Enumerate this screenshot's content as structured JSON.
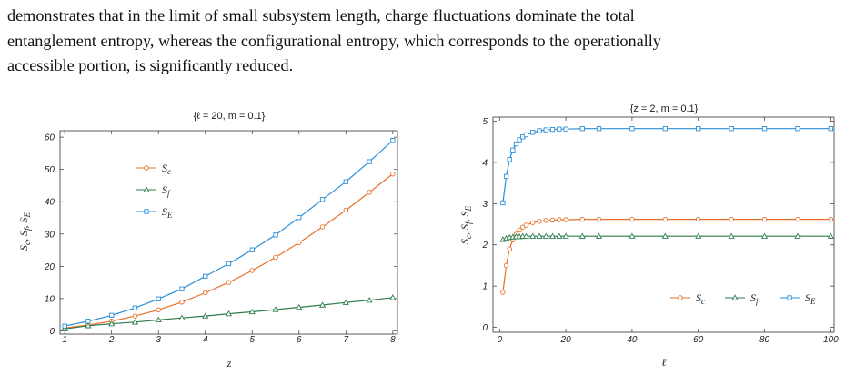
{
  "paragraph": {
    "lines": [
      "demonstrates that in the limit of small subsystem length, charge fluctuations dominate the total",
      "entanglement entropy, whereas the configurational entropy, which corresponds to the operationally",
      "accessible portion, is significantly reduced."
    ]
  },
  "chart_data": [
    {
      "type": "line",
      "title": "{ℓ = 20,  m = 0.1}",
      "xlabel": "z",
      "ylabel": "Sc, Sf, SE",
      "xlim": [
        0.9,
        8.1
      ],
      "ylim": [
        -1,
        62
      ],
      "xticks": [
        1,
        2,
        3,
        4,
        5,
        6,
        7,
        8
      ],
      "yticks": [
        0,
        10,
        20,
        30,
        40,
        50,
        60
      ],
      "legend_position": "upper-left-inside",
      "grid": false,
      "x": [
        1,
        1.5,
        2,
        2.5,
        3,
        3.5,
        4,
        4.5,
        5,
        5.5,
        6,
        6.5,
        7,
        7.5,
        8
      ],
      "series": [
        {
          "name": "Sc",
          "marker": "circle",
          "color": "#e8702a",
          "values": [
            0.9,
            1.8,
            3.0,
            4.6,
            6.5,
            8.9,
            11.8,
            15.0,
            18.7,
            22.8,
            27.3,
            32.2,
            37.4,
            42.9,
            48.6
          ]
        },
        {
          "name": "Sf",
          "marker": "triangle",
          "color": "#2e7d4f",
          "values": [
            0.6,
            1.6,
            2.2,
            2.7,
            3.4,
            4.0,
            4.6,
            5.3,
            5.9,
            6.6,
            7.3,
            8.0,
            8.8,
            9.5,
            10.3
          ]
        },
        {
          "name": "SE",
          "marker": "square",
          "color": "#2b8fd8",
          "values": [
            1.5,
            3.0,
            4.8,
            7.1,
            9.9,
            13.0,
            16.9,
            20.8,
            25.1,
            29.7,
            35.1,
            40.7,
            46.2,
            52.4,
            59.0
          ]
        }
      ]
    },
    {
      "type": "line",
      "title": "{z = 2, m = 0.1}",
      "xlabel": "ℓ",
      "ylabel": "Sc, Sf, SE",
      "xlim": [
        -2,
        101
      ],
      "ylim": [
        -0.12,
        5.1
      ],
      "xticks": [
        0,
        20,
        40,
        60,
        80,
        100
      ],
      "yticks": [
        0,
        1,
        2,
        3,
        4,
        5
      ],
      "legend_position": "lower-right-inside",
      "grid": false,
      "x": [
        1,
        2,
        3,
        4,
        5,
        6,
        7,
        8,
        10,
        12,
        14,
        16,
        18,
        20,
        25,
        30,
        40,
        50,
        60,
        70,
        80,
        90,
        100
      ],
      "series": [
        {
          "name": "Sc",
          "marker": "circle",
          "color": "#e8702a",
          "values": [
            0.85,
            1.5,
            1.9,
            2.12,
            2.26,
            2.36,
            2.43,
            2.48,
            2.54,
            2.57,
            2.59,
            2.6,
            2.61,
            2.61,
            2.62,
            2.62,
            2.62,
            2.62,
            2.62,
            2.62,
            2.62,
            2.62,
            2.62
          ]
        },
        {
          "name": "Sf",
          "marker": "triangle",
          "color": "#2e7d4f",
          "values": [
            2.13,
            2.16,
            2.18,
            2.19,
            2.2,
            2.2,
            2.21,
            2.21,
            2.21,
            2.21,
            2.21,
            2.21,
            2.21,
            2.21,
            2.21,
            2.21,
            2.21,
            2.21,
            2.21,
            2.21,
            2.21,
            2.21,
            2.21
          ]
        },
        {
          "name": "SE",
          "marker": "square",
          "color": "#2b8fd8",
          "values": [
            3.02,
            3.66,
            4.07,
            4.3,
            4.45,
            4.55,
            4.62,
            4.67,
            4.73,
            4.77,
            4.79,
            4.8,
            4.81,
            4.81,
            4.82,
            4.82,
            4.82,
            4.82,
            4.82,
            4.82,
            4.82,
            4.82,
            4.82
          ]
        }
      ]
    }
  ]
}
